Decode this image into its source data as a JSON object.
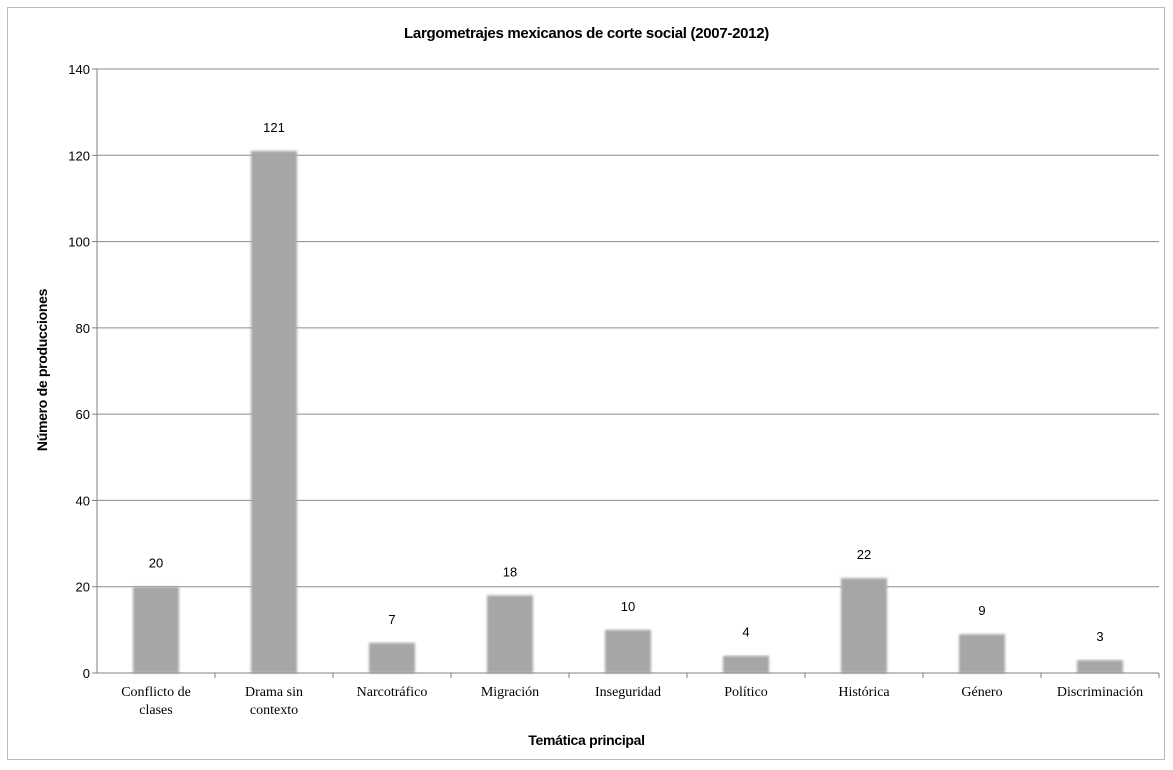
{
  "chart_data": {
    "type": "bar",
    "title": "Largometrajes mexicanos de corte social (2007-2012)",
    "xlabel": "Temática principal",
    "ylabel": "Número de producciones",
    "categories": [
      "Conflicto de clases",
      "Drama sin contexto",
      "Narcotráfico",
      "Migración",
      "Inseguridad",
      "Político",
      "Histórica",
      "Género",
      "Discriminación"
    ],
    "category_lines": [
      [
        "Conflicto de",
        "clases"
      ],
      [
        "Drama sin",
        "contexto"
      ],
      [
        "Narcotráfico"
      ],
      [
        "Migración"
      ],
      [
        "Inseguridad"
      ],
      [
        "Político"
      ],
      [
        "Histórica"
      ],
      [
        "Género"
      ],
      [
        "Discriminación"
      ]
    ],
    "values": [
      20,
      121,
      7,
      18,
      10,
      4,
      22,
      9,
      3
    ],
    "data_labels": [
      "20",
      "121",
      "7",
      "18",
      "10",
      "4",
      "22",
      "9",
      "3"
    ],
    "ylim": [
      0,
      140
    ],
    "yticks": [
      0,
      20,
      40,
      60,
      80,
      100,
      120,
      140
    ],
    "ytick_labels": [
      "0",
      "20",
      "40",
      "60",
      "80",
      "100",
      "120",
      "140"
    ],
    "grid": true,
    "legend": "none",
    "colors": {
      "bar": "#a6a6a6",
      "grid": "#8c8c8c",
      "axis": "#808080"
    }
  }
}
